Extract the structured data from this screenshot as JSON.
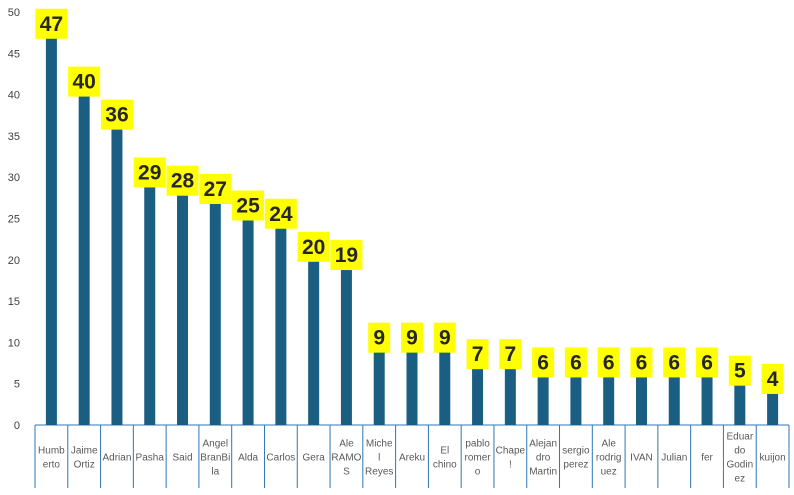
{
  "chart_data": {
    "type": "bar",
    "title": "",
    "xlabel": "",
    "ylabel": "",
    "ylim": [
      0,
      50
    ],
    "yticks": [
      0,
      5,
      10,
      15,
      20,
      25,
      30,
      35,
      40,
      45,
      50
    ],
    "grid": false,
    "legend": "none",
    "categories": [
      "Humberto",
      "Jaime Ortiz",
      "Adrian",
      "Pasha",
      "Said",
      "Angel BranBila",
      "Alda",
      "Carlos",
      "Gera",
      "Ale RAMOS",
      "Michel Reyes",
      "Areku",
      "El chino",
      "pablo romero",
      "Chape!",
      "Alejandro Martin",
      "sergio perez",
      "Ale rodriguez",
      "IVAN",
      "Julian",
      "fer",
      "Eduardo Godinez",
      "kuijon"
    ],
    "category_lines": [
      [
        "Humb",
        "erto"
      ],
      [
        "Jaime",
        "Ortiz"
      ],
      [
        "Adrian"
      ],
      [
        "Pasha"
      ],
      [
        "Said"
      ],
      [
        "Angel",
        "BranBi",
        "la"
      ],
      [
        "Alda"
      ],
      [
        "Carlos"
      ],
      [
        "Gera"
      ],
      [
        "Ale",
        "RAMO",
        "S"
      ],
      [
        "Miche",
        "l",
        "Reyes"
      ],
      [
        "Areku"
      ],
      [
        "El",
        "chino"
      ],
      [
        "pablo",
        "romer",
        "o"
      ],
      [
        "Chape",
        "!"
      ],
      [
        "Alejan",
        "dro",
        "Martin"
      ],
      [
        "sergio",
        "perez"
      ],
      [
        "Ale",
        "rodrig",
        "uez"
      ],
      [
        "IVAN"
      ],
      [
        "Julian"
      ],
      [
        "fer"
      ],
      [
        "Eduar",
        "do",
        "Godin",
        "ez"
      ],
      [
        "kuijon"
      ]
    ],
    "values": [
      47,
      40,
      36,
      29,
      28,
      27,
      25,
      24,
      20,
      19,
      9,
      9,
      9,
      7,
      7,
      6,
      6,
      6,
      6,
      6,
      6,
      5,
      4
    ],
    "colors": {
      "bar": "#1a5e82",
      "label_bg": "#ffff00",
      "label_text": "#262626",
      "axis_text": "#404040",
      "category_border": "#2e75b6"
    }
  }
}
